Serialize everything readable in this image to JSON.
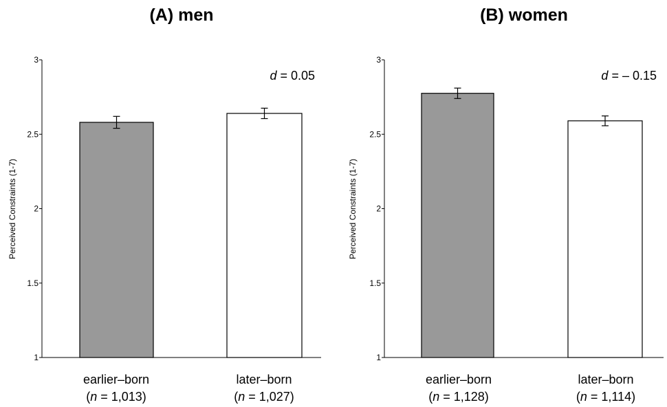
{
  "chart_data": [
    {
      "type": "bar",
      "title": "(A) men",
      "ylabel": "Perceived Constraints (1-7)",
      "ylim": [
        1,
        3
      ],
      "yticks": [
        "1",
        "1.5",
        "2",
        "2.5",
        "3"
      ],
      "effect_label": {
        "prefix": "d",
        "text": " = 0.05"
      },
      "categories": [
        "earlier–born",
        "later–born"
      ],
      "n_labels": [
        {
          "n": "n",
          "text": " = 1,013)"
        },
        {
          "n": "n",
          "text": " = 1,027)"
        }
      ],
      "values": [
        2.58,
        2.64
      ],
      "errors": [
        0.04,
        0.035
      ],
      "colors": [
        "#999999",
        "#ffffff"
      ]
    },
    {
      "type": "bar",
      "title": "(B) women",
      "ylabel": "Perceived Constraints (1-7)",
      "ylim": [
        1,
        3
      ],
      "yticks": [
        "1",
        "1.5",
        "2",
        "2.5",
        "3"
      ],
      "effect_label": {
        "prefix": "d",
        "text": " = – 0.15"
      },
      "categories": [
        "earlier–born",
        "later–born"
      ],
      "n_labels": [
        {
          "n": "n",
          "text": " = 1,128)"
        },
        {
          "n": "n",
          "text": " = 1,114)"
        }
      ],
      "values": [
        2.775,
        2.59
      ],
      "errors": [
        0.035,
        0.033
      ],
      "colors": [
        "#999999",
        "#ffffff"
      ]
    }
  ]
}
